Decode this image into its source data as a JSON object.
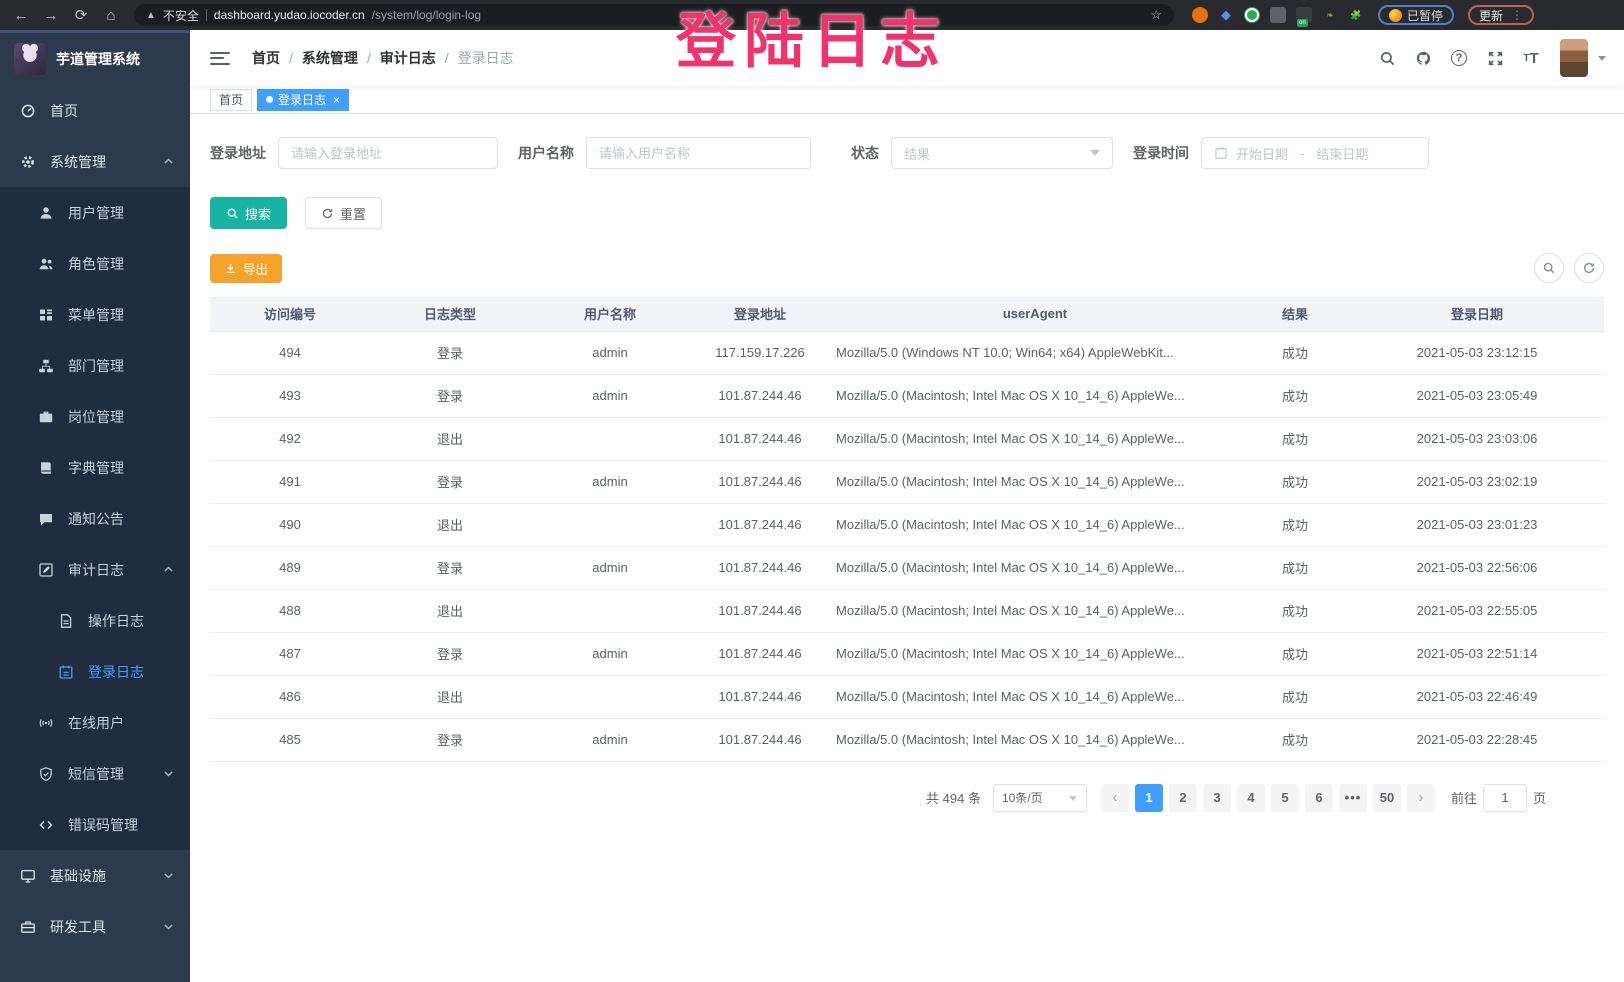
{
  "browser": {
    "security_label": "不安全",
    "url_host": "dashboard.yudao.iocoder.cn",
    "url_path": "/system/log/login-log",
    "paused_label": "已暂停",
    "update_label": "更新",
    "kebab": "⋮",
    "nav_icons": [
      "back",
      "forward",
      "reload",
      "home"
    ],
    "extension_slots": 7
  },
  "overlay": {
    "text": "登陆日志",
    "color": "#f2336b"
  },
  "sidebar": {
    "logo_title": "芋道管理系统",
    "items": [
      {
        "label": "首页",
        "icon": "dashboard",
        "level": 1
      },
      {
        "label": "系统管理",
        "icon": "gear",
        "level": 1,
        "arrow": "up"
      },
      {
        "label": "用户管理",
        "icon": "user",
        "level": 2
      },
      {
        "label": "角色管理",
        "icon": "users",
        "level": 2
      },
      {
        "label": "菜单管理",
        "icon": "menu",
        "level": 2
      },
      {
        "label": "部门管理",
        "icon": "tree",
        "level": 2
      },
      {
        "label": "岗位管理",
        "icon": "briefcase",
        "level": 2
      },
      {
        "label": "字典管理",
        "icon": "book",
        "level": 2
      },
      {
        "label": "通知公告",
        "icon": "megaphone",
        "level": 2
      },
      {
        "label": "审计日志",
        "icon": "edit",
        "level": 2,
        "arrow": "up"
      },
      {
        "label": "操作日志",
        "icon": "document",
        "level": 3
      },
      {
        "label": "登录日志",
        "icon": "calendar",
        "level": 3,
        "active": true
      },
      {
        "label": "在线用户",
        "icon": "online",
        "level": 2
      },
      {
        "label": "短信管理",
        "icon": "shield",
        "level": 2,
        "arrow": "down"
      },
      {
        "label": "错误码管理",
        "icon": "code",
        "level": 2
      },
      {
        "label": "基础设施",
        "icon": "monitor",
        "level": 1,
        "arrow": "down"
      },
      {
        "label": "研发工具",
        "icon": "toolbox",
        "level": 1,
        "arrow": "down"
      }
    ]
  },
  "header": {
    "breadcrumb": [
      "首页",
      "系统管理",
      "审计日志",
      "登录日志"
    ],
    "action_icons": [
      "search",
      "github",
      "question",
      "fullscreen",
      "font-size",
      "avatar",
      "caret-down"
    ]
  },
  "tabs": [
    {
      "label": "首页",
      "active": false
    },
    {
      "label": "登录日志",
      "active": true,
      "closable": true,
      "close_glyph": "×"
    }
  ],
  "filters": {
    "login_address": {
      "label": "登录地址",
      "placeholder": "请输入登录地址"
    },
    "username": {
      "label": "用户名称",
      "placeholder": "请输入用户名称"
    },
    "status": {
      "label": "状态",
      "placeholder": "结果"
    },
    "login_time": {
      "label": "登录时间",
      "start_placeholder": "开始日期",
      "separator": "-",
      "end_placeholder": "结束日期"
    },
    "search_label": "搜索",
    "reset_label": "重置"
  },
  "toolbar": {
    "export_label": "导出"
  },
  "table": {
    "columns": [
      "访问编号",
      "日志类型",
      "用户名称",
      "登录地址",
      "userAgent",
      "结果",
      "登录日期"
    ],
    "column_keys": [
      "id",
      "type",
      "username",
      "ip",
      "user_agent",
      "result",
      "date"
    ],
    "rows": [
      [
        "494",
        "登录",
        "admin",
        "117.159.17.226",
        "Mozilla/5.0 (Windows NT 10.0; Win64; x64) AppleWebKit...",
        "成功",
        "2021-05-03 23:12:15"
      ],
      [
        "493",
        "登录",
        "admin",
        "101.87.244.46",
        "Mozilla/5.0 (Macintosh; Intel Mac OS X 10_14_6) AppleWe...",
        "成功",
        "2021-05-03 23:05:49"
      ],
      [
        "492",
        "退出",
        "",
        "101.87.244.46",
        "Mozilla/5.0 (Macintosh; Intel Mac OS X 10_14_6) AppleWe...",
        "成功",
        "2021-05-03 23:03:06"
      ],
      [
        "491",
        "登录",
        "admin",
        "101.87.244.46",
        "Mozilla/5.0 (Macintosh; Intel Mac OS X 10_14_6) AppleWe...",
        "成功",
        "2021-05-03 23:02:19"
      ],
      [
        "490",
        "退出",
        "",
        "101.87.244.46",
        "Mozilla/5.0 (Macintosh; Intel Mac OS X 10_14_6) AppleWe...",
        "成功",
        "2021-05-03 23:01:23"
      ],
      [
        "489",
        "登录",
        "admin",
        "101.87.244.46",
        "Mozilla/5.0 (Macintosh; Intel Mac OS X 10_14_6) AppleWe...",
        "成功",
        "2021-05-03 22:56:06"
      ],
      [
        "488",
        "退出",
        "",
        "101.87.244.46",
        "Mozilla/5.0 (Macintosh; Intel Mac OS X 10_14_6) AppleWe...",
        "成功",
        "2021-05-03 22:55:05"
      ],
      [
        "487",
        "登录",
        "admin",
        "101.87.244.46",
        "Mozilla/5.0 (Macintosh; Intel Mac OS X 10_14_6) AppleWe...",
        "成功",
        "2021-05-03 22:51:14"
      ],
      [
        "486",
        "退出",
        "",
        "101.87.244.46",
        "Mozilla/5.0 (Macintosh; Intel Mac OS X 10_14_6) AppleWe...",
        "成功",
        "2021-05-03 22:46:49"
      ],
      [
        "485",
        "登录",
        "admin",
        "101.87.244.46",
        "Mozilla/5.0 (Macintosh; Intel Mac OS X 10_14_6) AppleWe...",
        "成功",
        "2021-05-03 22:28:45"
      ]
    ]
  },
  "pagination": {
    "total_label": "共 494 条",
    "page_size_label": "10条/页",
    "prev_glyph": "‹",
    "next_glyph": "›",
    "pages": [
      "1",
      "2",
      "3",
      "4",
      "5",
      "6",
      "•••",
      "50"
    ],
    "active_page": "1",
    "goto_label": "前往",
    "goto_value": "1",
    "page_suffix": "页"
  },
  "colors": {
    "accent": "#409eff",
    "search_button": "#17b3a3",
    "export_button": "#f5a32a",
    "annotation": "#f2336b",
    "sidebar_bg": "#2d3a4d",
    "sidebar_submenu_bg": "#1f2d3f"
  }
}
